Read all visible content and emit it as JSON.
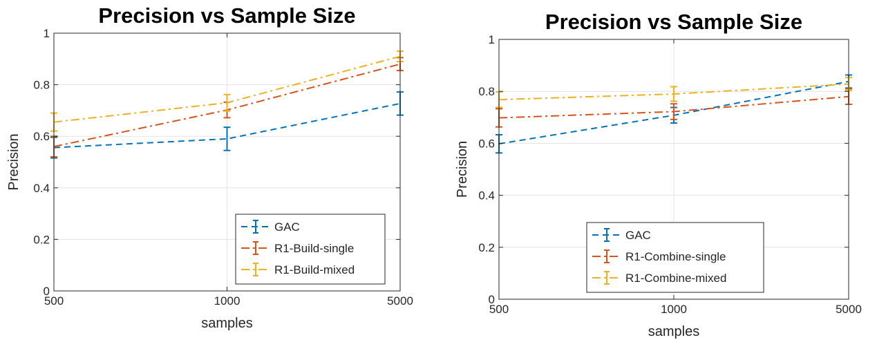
{
  "chart_data": [
    {
      "type": "line",
      "title": "Precision vs Sample Size",
      "xlabel": "samples",
      "ylabel": "Precision",
      "categories": [
        "500",
        "1000",
        "5000"
      ],
      "ylim": [
        0,
        1
      ],
      "yticks": [
        "0",
        "0.2",
        "0.4",
        "0.6",
        "0.8",
        "1"
      ],
      "grid": true,
      "legend_position": "bottom-right",
      "series": [
        {
          "name": "GAC",
          "color": "#0072BD",
          "dash": "dashed",
          "values": [
            0.556,
            0.59,
            0.727
          ],
          "err": [
            0.04,
            0.045,
            0.045
          ]
        },
        {
          "name": "R1-Build-single",
          "color": "#D95319",
          "dash": "dashdot",
          "values": [
            0.56,
            0.702,
            0.88
          ],
          "err": [
            0.04,
            0.03,
            0.025
          ]
        },
        {
          "name": "R1-Build-mixed",
          "color": "#EDB120",
          "dash": "dashdot",
          "values": [
            0.655,
            0.73,
            0.91
          ],
          "err": [
            0.035,
            0.032,
            0.02
          ]
        }
      ]
    },
    {
      "type": "line",
      "title": "Precision vs Sample Size",
      "xlabel": "samples",
      "ylabel": "Precision",
      "categories": [
        "500",
        "1000",
        "5000"
      ],
      "ylim": [
        0,
        1
      ],
      "yticks": [
        "0",
        "0.2",
        "0.4",
        "0.6",
        "0.8",
        "1"
      ],
      "grid": true,
      "legend_position": "bottom-center",
      "series": [
        {
          "name": "GAC",
          "color": "#0072BD",
          "dash": "dashed",
          "values": [
            0.598,
            0.708,
            0.838
          ],
          "err": [
            0.035,
            0.03,
            0.025
          ]
        },
        {
          "name": "R1-Combine-single",
          "color": "#D95319",
          "dash": "dashdot",
          "values": [
            0.698,
            0.722,
            0.78
          ],
          "err": [
            0.035,
            0.03,
            0.03
          ]
        },
        {
          "name": "R1-Combine-mixed",
          "color": "#EDB120",
          "dash": "dashdot",
          "values": [
            0.768,
            0.79,
            0.828
          ],
          "err": [
            0.03,
            0.028,
            0.025
          ]
        }
      ]
    }
  ]
}
